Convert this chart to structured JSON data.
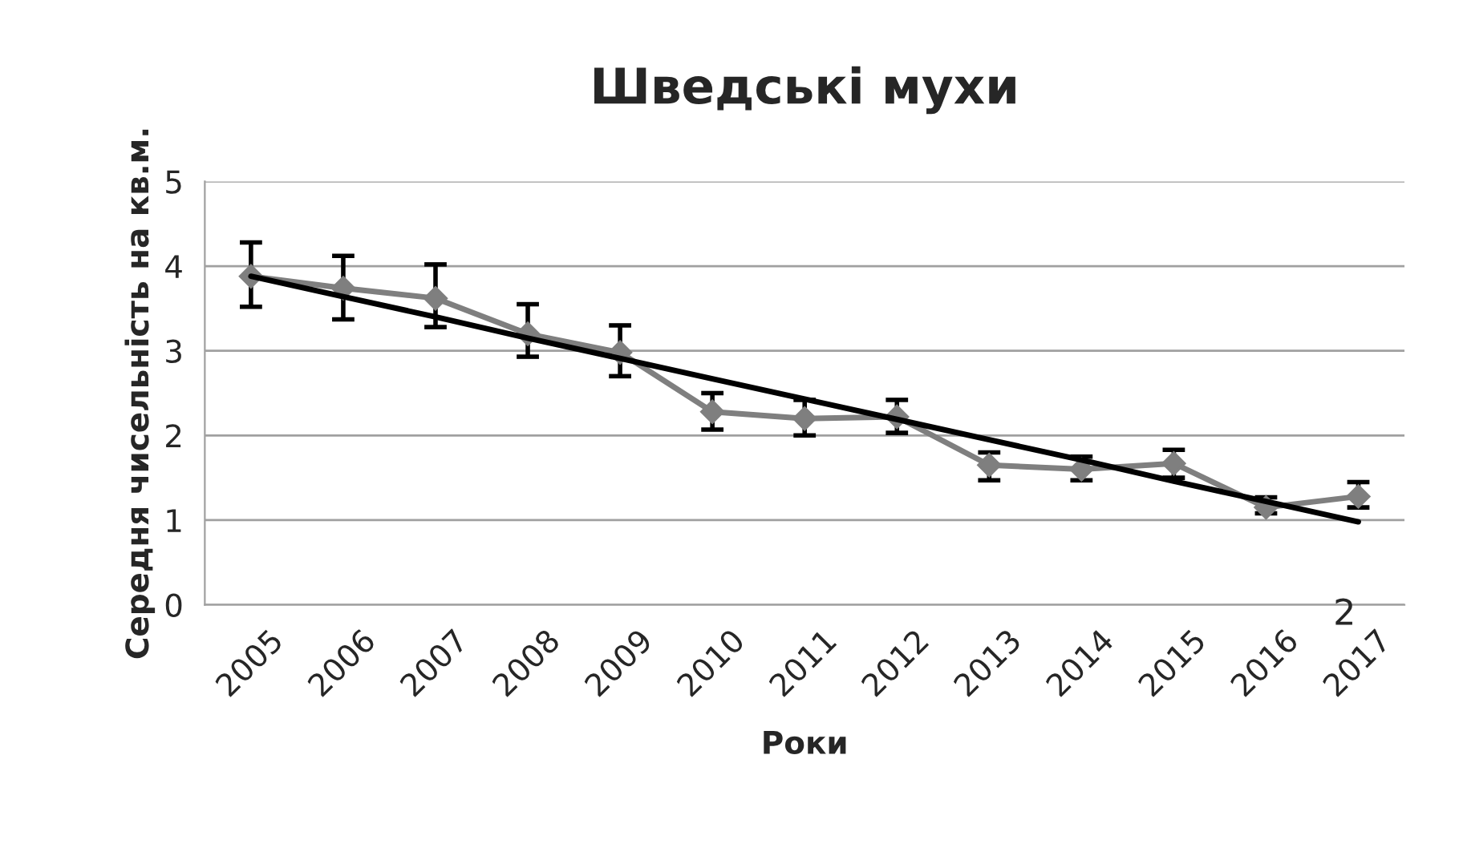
{
  "chart_data": {
    "type": "line",
    "title": "Шведські мухи",
    "xlabel": "Роки",
    "ylabel": "Середня чисельність на кв.м.",
    "categories": [
      "2005",
      "2006",
      "2007",
      "2008",
      "2009",
      "2010",
      "2011",
      "2012",
      "2013",
      "2014",
      "2015",
      "2016",
      "2017"
    ],
    "series": [
      {
        "color": "#7f7f7f",
        "marker": "diamond",
        "values": [
          3.88,
          3.74,
          3.62,
          3.2,
          2.98,
          2.28,
          2.2,
          2.22,
          1.65,
          1.6,
          1.67,
          1.15,
          1.28
        ],
        "errors": [
          [
            3.52,
            4.28
          ],
          [
            3.37,
            4.12
          ],
          [
            3.28,
            4.02
          ],
          [
            2.93,
            3.55
          ],
          [
            2.7,
            3.3
          ],
          [
            2.07,
            2.5
          ],
          [
            2.0,
            2.42
          ],
          [
            2.03,
            2.42
          ],
          [
            1.47,
            1.8
          ],
          [
            1.47,
            1.75
          ],
          [
            1.5,
            1.83
          ],
          [
            1.08,
            1.27
          ],
          [
            1.15,
            1.45
          ]
        ]
      },
      {
        "color": "#000000",
        "marker": "none",
        "values": [
          3.88,
          3.64,
          3.4,
          3.15,
          2.91,
          2.67,
          2.43,
          2.19,
          1.95,
          1.71,
          1.46,
          1.22,
          0.98
        ]
      }
    ],
    "ylim": [
      0,
      5
    ],
    "yticks": [
      0,
      1,
      2,
      3,
      4,
      5
    ],
    "grid": "y",
    "legend": false,
    "annotations": [
      "2"
    ]
  }
}
